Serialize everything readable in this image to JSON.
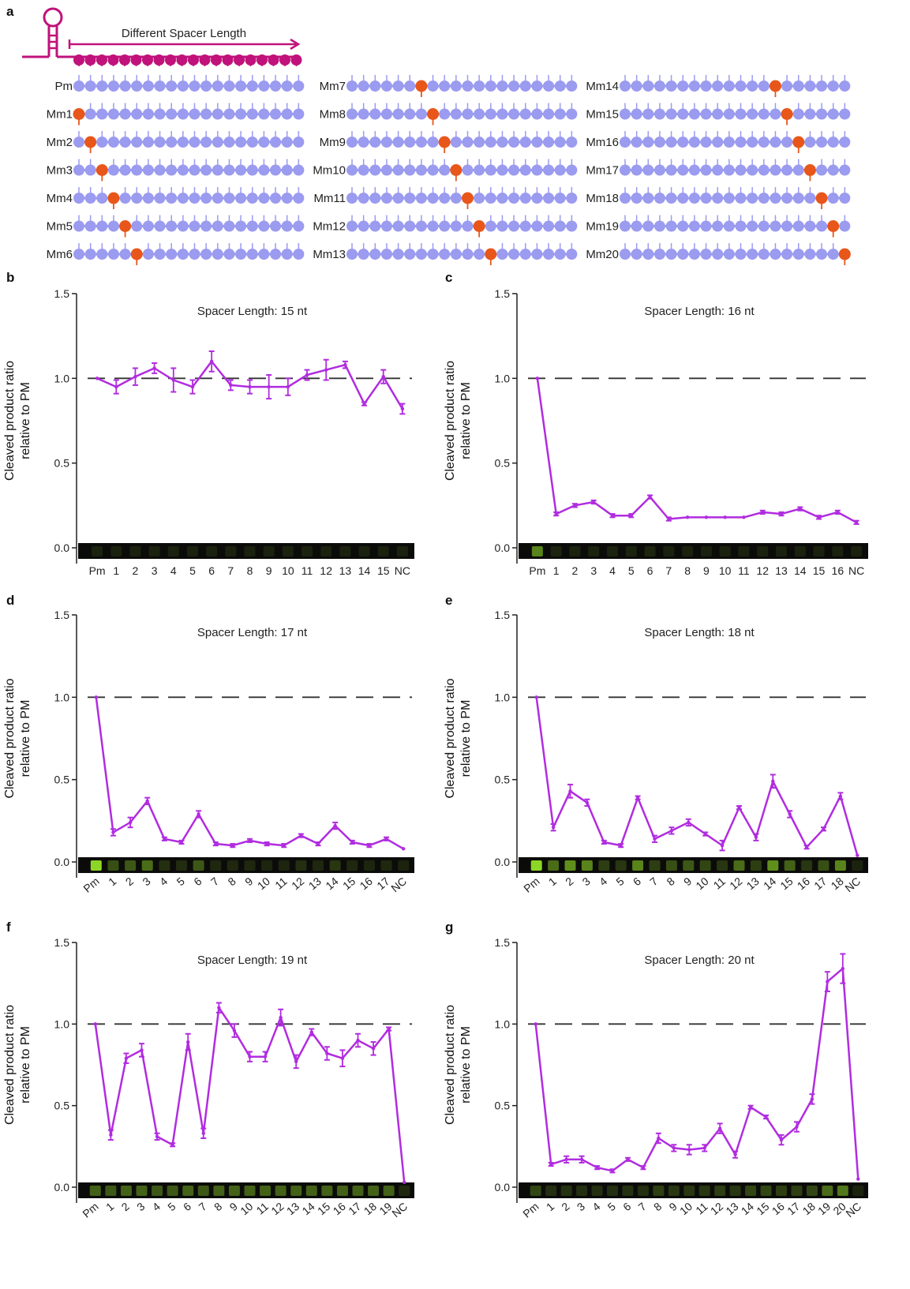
{
  "colors": {
    "line": "#b12ce0",
    "guide": "#c0127a",
    "node": "#9b9bf0",
    "mismatch": "#e8561a",
    "stem": "#e8561a",
    "axis": "#222222",
    "dash": "#333333"
  },
  "panel_a": {
    "label": "a",
    "header": "Different Spacer Length",
    "rows": [
      "Pm",
      "Mm1",
      "Mm2",
      "Mm3",
      "Mm4",
      "Mm5",
      "Mm6",
      "Mm7",
      "Mm8",
      "Mm9",
      "Mm10",
      "Mm11",
      "Mm12",
      "Mm13",
      "Mm14",
      "Mm15",
      "Mm16",
      "Mm17",
      "Mm18",
      "Mm19",
      "Mm20"
    ],
    "mismatch_positions": [
      0,
      1,
      2,
      3,
      4,
      5,
      6,
      7,
      8,
      9,
      10,
      11,
      12,
      13,
      14,
      15,
      16,
      17,
      18,
      19,
      20
    ]
  },
  "chart_data": [
    {
      "panel": "b",
      "type": "line",
      "title": "Spacer Length: 15 nt",
      "ylabel": [
        "Cleaved product ratio",
        "relative to PM"
      ],
      "ylim": [
        0,
        1.5
      ],
      "yticks": [
        "0.0",
        "0.5",
        "1.0",
        "1.5"
      ],
      "reference_line": 1.0,
      "categories": [
        "Pm",
        "1",
        "2",
        "3",
        "4",
        "5",
        "6",
        "7",
        "8",
        "9",
        "10",
        "11",
        "12",
        "13",
        "14",
        "15",
        "NC"
      ],
      "tick_rotate": false,
      "values": [
        1.0,
        0.95,
        1.01,
        1.06,
        0.99,
        0.95,
        1.1,
        0.96,
        0.95,
        0.95,
        0.95,
        1.02,
        1.05,
        1.08,
        0.85,
        1.01,
        0.82
      ],
      "errors": [
        0.0,
        0.04,
        0.05,
        0.03,
        0.07,
        0.04,
        0.06,
        0.03,
        0.04,
        0.07,
        0.05,
        0.03,
        0.06,
        0.02,
        0.01,
        0.04,
        0.03
      ],
      "gel": [
        0.1,
        0.08,
        0.08,
        0.08,
        0.08,
        0.08,
        0.08,
        0.08,
        0.08,
        0.08,
        0.08,
        0.08,
        0.08,
        0.08,
        0.08,
        0.08,
        0.08
      ]
    },
    {
      "panel": "c",
      "type": "line",
      "title": "Spacer Length: 16 nt",
      "ylabel": [
        "Cleaved product ratio",
        "relative to PM"
      ],
      "ylim": [
        0,
        1.5
      ],
      "yticks": [
        "0.0",
        "0.5",
        "1.0",
        "1.5"
      ],
      "reference_line": 1.0,
      "categories": [
        "Pm",
        "1",
        "2",
        "3",
        "4",
        "5",
        "6",
        "7",
        "8",
        "9",
        "10",
        "11",
        "12",
        "13",
        "14",
        "15",
        "16",
        "NC"
      ],
      "tick_rotate": false,
      "values": [
        1.0,
        0.2,
        0.25,
        0.27,
        0.19,
        0.19,
        0.3,
        0.17,
        0.18,
        0.18,
        0.18,
        0.18,
        0.21,
        0.2,
        0.23,
        0.18,
        0.21,
        0.15
      ],
      "errors": [
        0.0,
        0.01,
        0.01,
        0.01,
        0.01,
        0.01,
        0.01,
        0.01,
        0.0,
        0.0,
        0.0,
        0.0,
        0.01,
        0.01,
        0.01,
        0.01,
        0.01,
        0.01
      ],
      "gel": [
        0.65,
        0.1,
        0.1,
        0.1,
        0.1,
        0.1,
        0.12,
        0.08,
        0.08,
        0.08,
        0.08,
        0.08,
        0.08,
        0.08,
        0.08,
        0.08,
        0.08,
        0.08
      ]
    },
    {
      "panel": "d",
      "type": "line",
      "title": "Spacer Length: 17 nt",
      "ylabel": [
        "Cleaved product ratio",
        "relative to PM"
      ],
      "ylim": [
        0,
        1.5
      ],
      "yticks": [
        "0.0",
        "0.5",
        "1.0",
        "1.5"
      ],
      "reference_line": 1.0,
      "categories": [
        "Pm",
        "1",
        "2",
        "3",
        "4",
        "5",
        "6",
        "7",
        "8",
        "9",
        "10",
        "11",
        "12",
        "13",
        "14",
        "15",
        "16",
        "17",
        "NC"
      ],
      "tick_rotate": true,
      "values": [
        1.0,
        0.18,
        0.24,
        0.37,
        0.14,
        0.12,
        0.29,
        0.11,
        0.1,
        0.13,
        0.11,
        0.1,
        0.16,
        0.11,
        0.22,
        0.12,
        0.1,
        0.14,
        0.08
      ],
      "errors": [
        0.0,
        0.02,
        0.03,
        0.02,
        0.01,
        0.01,
        0.02,
        0.01,
        0.01,
        0.01,
        0.01,
        0.01,
        0.01,
        0.01,
        0.02,
        0.01,
        0.01,
        0.01,
        0.0
      ],
      "gel": [
        0.95,
        0.4,
        0.45,
        0.55,
        0.2,
        0.18,
        0.45,
        0.15,
        0.15,
        0.15,
        0.12,
        0.12,
        0.2,
        0.15,
        0.25,
        0.15,
        0.12,
        0.15,
        0.1
      ]
    },
    {
      "panel": "e",
      "type": "line",
      "title": "Spacer Length: 18 nt",
      "ylabel": [
        "Cleaved product ratio",
        "relative to PM"
      ],
      "ylim": [
        0,
        1.5
      ],
      "yticks": [
        "0.0",
        "0.5",
        "1.0",
        "1.5"
      ],
      "reference_line": 1.0,
      "categories": [
        "Pm",
        "1",
        "2",
        "3",
        "4",
        "5",
        "6",
        "7",
        "8",
        "9",
        "10",
        "11",
        "12",
        "13",
        "14",
        "15",
        "16",
        "17",
        "18",
        "NC"
      ],
      "tick_rotate": true,
      "values": [
        1.0,
        0.21,
        0.43,
        0.36,
        0.12,
        0.1,
        0.39,
        0.14,
        0.19,
        0.24,
        0.17,
        0.1,
        0.33,
        0.15,
        0.49,
        0.29,
        0.09,
        0.2,
        0.4,
        0.04
      ],
      "errors": [
        0.0,
        0.02,
        0.04,
        0.02,
        0.01,
        0.01,
        0.01,
        0.02,
        0.02,
        0.02,
        0.01,
        0.03,
        0.01,
        0.02,
        0.04,
        0.02,
        0.01,
        0.01,
        0.02,
        0.0
      ],
      "gel": [
        0.95,
        0.55,
        0.7,
        0.65,
        0.3,
        0.25,
        0.65,
        0.3,
        0.4,
        0.45,
        0.35,
        0.25,
        0.55,
        0.3,
        0.7,
        0.5,
        0.25,
        0.4,
        0.65,
        0.1
      ]
    },
    {
      "panel": "f",
      "type": "line",
      "title": "Spacer Length: 19 nt",
      "ylabel": [
        "Cleaved product ratio",
        "relative to PM"
      ],
      "ylim": [
        0,
        1.5
      ],
      "yticks": [
        "0.0",
        "0.5",
        "1.0",
        "1.5"
      ],
      "reference_line": 1.0,
      "categories": [
        "Pm",
        "1",
        "2",
        "3",
        "4",
        "5",
        "6",
        "7",
        "8",
        "9",
        "10",
        "11",
        "12",
        "13",
        "14",
        "15",
        "16",
        "17",
        "18",
        "19",
        "NC"
      ],
      "tick_rotate": true,
      "values": [
        1.0,
        0.32,
        0.79,
        0.84,
        0.31,
        0.26,
        0.89,
        0.33,
        1.1,
        0.96,
        0.8,
        0.8,
        1.04,
        0.77,
        0.95,
        0.82,
        0.79,
        0.9,
        0.85,
        0.97,
        0.03
      ],
      "errors": [
        0.0,
        0.03,
        0.03,
        0.04,
        0.02,
        0.01,
        0.05,
        0.03,
        0.03,
        0.04,
        0.03,
        0.03,
        0.05,
        0.04,
        0.02,
        0.04,
        0.05,
        0.04,
        0.04,
        0.01,
        0.0
      ],
      "gel": [
        0.5,
        0.45,
        0.5,
        0.5,
        0.45,
        0.45,
        0.5,
        0.45,
        0.5,
        0.5,
        0.5,
        0.5,
        0.5,
        0.5,
        0.5,
        0.5,
        0.5,
        0.5,
        0.5,
        0.5,
        0.15
      ]
    },
    {
      "panel": "g",
      "type": "line",
      "title": "Spacer Length: 20 nt",
      "ylabel": [
        "Cleaved product ratio",
        "relative to PM"
      ],
      "ylim": [
        0,
        1.5
      ],
      "yticks": [
        "0.0",
        "0.5",
        "1.0",
        "1.5"
      ],
      "reference_line": 1.0,
      "categories": [
        "Pm",
        "1",
        "2",
        "3",
        "4",
        "5",
        "6",
        "7",
        "8",
        "9",
        "10",
        "11",
        "12",
        "13",
        "14",
        "15",
        "16",
        "17",
        "18",
        "19",
        "20",
        "NC"
      ],
      "tick_rotate": true,
      "values": [
        1.0,
        0.14,
        0.17,
        0.17,
        0.12,
        0.1,
        0.17,
        0.12,
        0.3,
        0.24,
        0.23,
        0.24,
        0.36,
        0.2,
        0.49,
        0.43,
        0.29,
        0.37,
        0.54,
        1.26,
        1.34,
        0.05
      ],
      "errors": [
        0.0,
        0.01,
        0.02,
        0.02,
        0.01,
        0.01,
        0.01,
        0.01,
        0.03,
        0.02,
        0.03,
        0.02,
        0.03,
        0.02,
        0.01,
        0.01,
        0.03,
        0.03,
        0.03,
        0.06,
        0.09,
        0.0
      ],
      "gel": [
        0.35,
        0.2,
        0.22,
        0.2,
        0.2,
        0.2,
        0.22,
        0.2,
        0.3,
        0.25,
        0.25,
        0.25,
        0.3,
        0.25,
        0.35,
        0.35,
        0.3,
        0.3,
        0.35,
        0.55,
        0.6,
        0.1
      ]
    }
  ]
}
